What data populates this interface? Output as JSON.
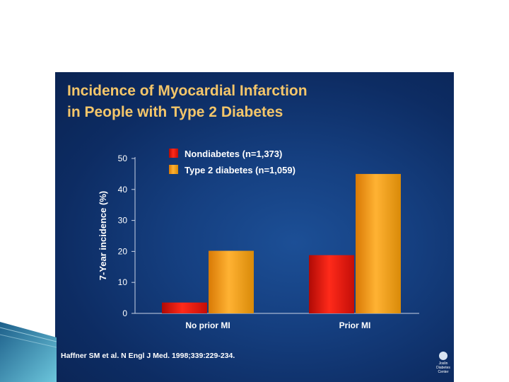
{
  "slide": {
    "title_line1": "Incidence of Myocardial Infarction",
    "title_line2": "in People with Type 2 Diabetes",
    "citation": "Haffner SM et al. N Engl J Med. 1998;339:229-234.",
    "logo_text": [
      "Joslin",
      "Diabetes",
      "Center"
    ]
  },
  "chart_data": {
    "type": "bar",
    "categories": [
      "No prior MI",
      "Prior MI"
    ],
    "series": [
      {
        "name": "Nondiabetes (n=1,373)",
        "values": [
          3.5,
          18.8
        ],
        "color": "#e8160c"
      },
      {
        "name": "Type 2 diabetes (n=1,059)",
        "values": [
          20.2,
          45.0
        ],
        "color": "#f79d0e"
      }
    ],
    "title": "Incidence of Myocardial Infarction in People with Type 2 Diabetes",
    "xlabel": "",
    "ylabel": "7-Year incidence (%)",
    "ylim": [
      0,
      50
    ],
    "yticks": [
      0,
      10,
      20,
      30,
      40,
      50
    ],
    "grid": false,
    "legend_position": "top-left"
  }
}
